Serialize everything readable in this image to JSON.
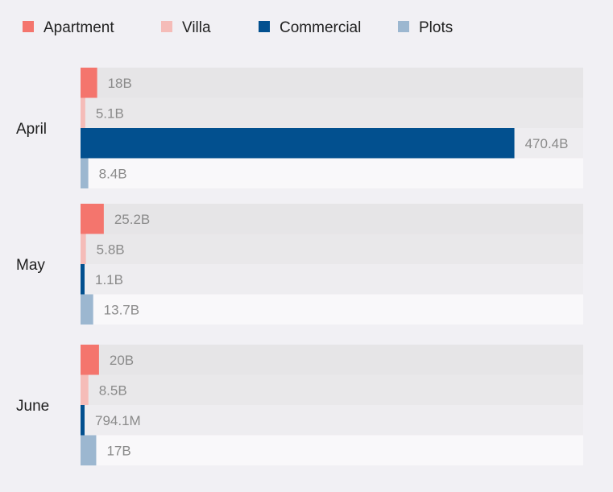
{
  "chart_data": {
    "type": "bar",
    "orientation": "horizontal",
    "categories": [
      "April",
      "May",
      "June"
    ],
    "series": [
      {
        "name": "Apartment",
        "color": "#f4756d",
        "values": [
          18,
          25.2,
          20
        ],
        "labels": [
          "18B",
          "25.2B",
          "20B"
        ]
      },
      {
        "name": "Villa",
        "color": "#f5bcb8",
        "values": [
          5.1,
          5.8,
          8.5
        ],
        "labels": [
          "5.1B",
          "5.8B",
          "8.5B"
        ]
      },
      {
        "name": "Commercial",
        "color": "#02508f",
        "values": [
          470.4,
          1.1,
          0.7941
        ],
        "labels": [
          "470.4B",
          "1.1B",
          "794.1M"
        ]
      },
      {
        "name": "Plots",
        "color": "#9cb7d0",
        "values": [
          8.4,
          13.7,
          17
        ],
        "labels": [
          "8.4B",
          "13.7B",
          "17B"
        ]
      }
    ],
    "units": "billions",
    "xlim": [
      0,
      545
    ],
    "legend_position": "top-left",
    "grid": false
  }
}
